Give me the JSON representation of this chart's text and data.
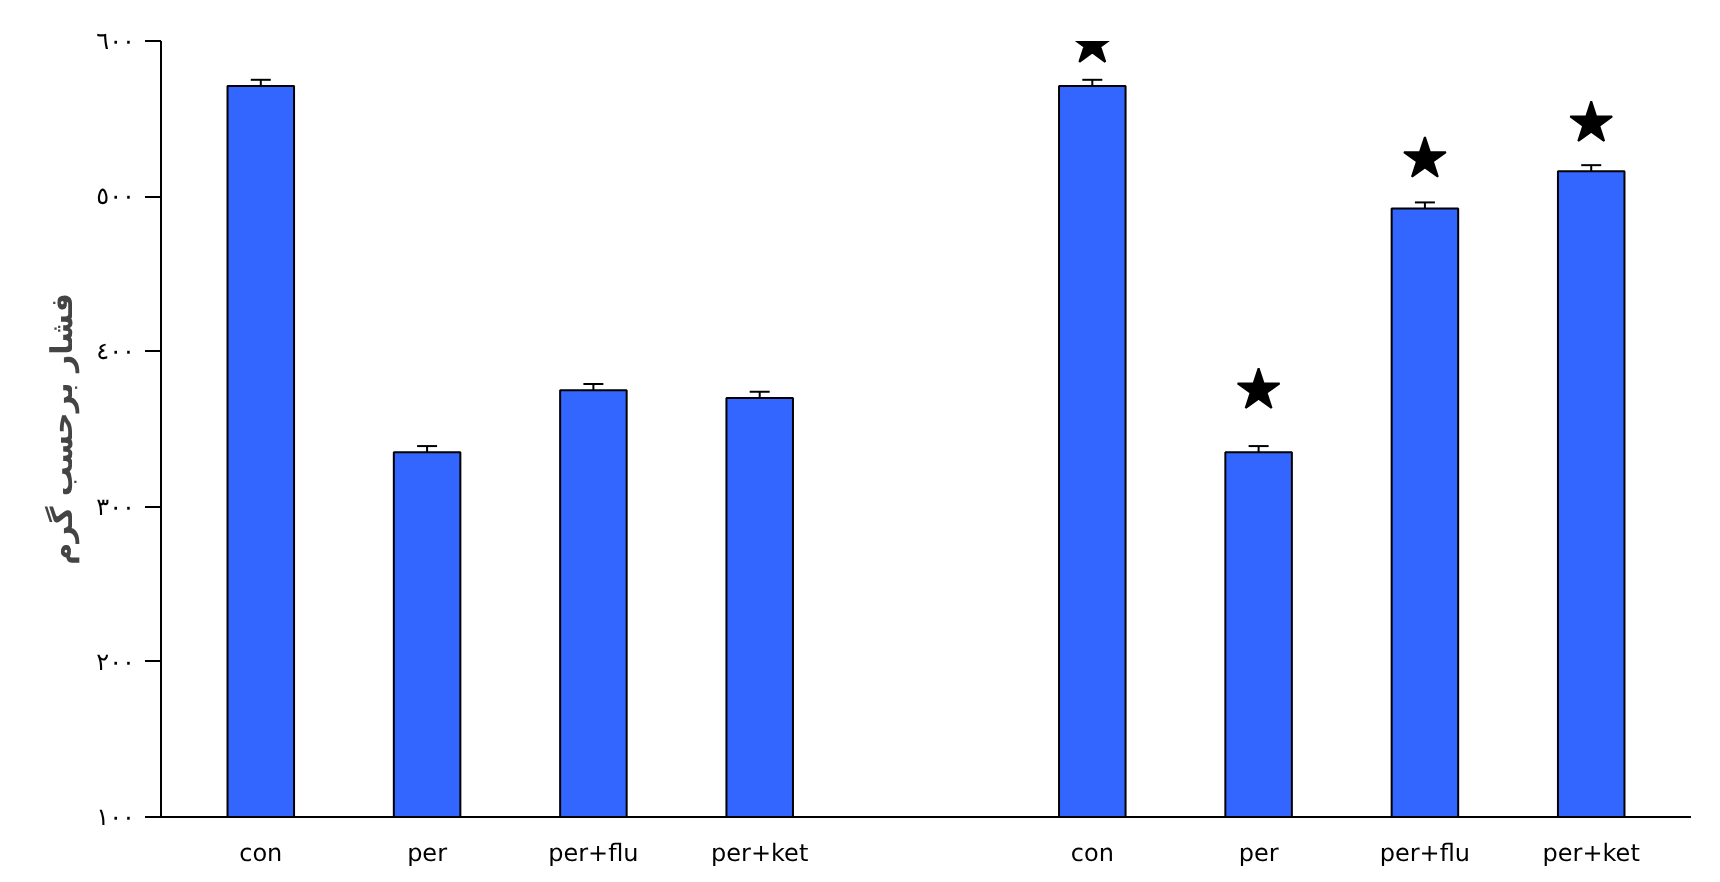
{
  "chart_data": {
    "type": "bar",
    "ylabel": "فشار برحسب گرم",
    "categories": [
      "con",
      "per",
      "per+flu",
      "per+ket",
      null,
      "con",
      "per",
      "per+flu",
      "per+ket"
    ],
    "series": [
      {
        "color": "#3366ff",
        "values": [
          571,
          335,
          375,
          370,
          null,
          571,
          335,
          492,
          516
        ],
        "errors": [
          4,
          4,
          4,
          4,
          null,
          4,
          4,
          4,
          4
        ]
      },
      {
        "type": "scatter",
        "color": "#000000",
        "marker": "star",
        "values": [
          null,
          null,
          null,
          null,
          null,
          598,
          375,
          524,
          547
        ]
      }
    ],
    "ylim": [
      100,
      600
    ],
    "yticks": [
      {
        "value": 100,
        "label": "١٠٠"
      },
      {
        "value": 200,
        "label": "٢٠٠"
      },
      {
        "value": 300,
        "label": "٣٠٠"
      },
      {
        "value": 400,
        "label": "٤٠٠"
      },
      {
        "value": 500,
        "label": "٥٠٠"
      },
      {
        "value": 600,
        "label": "٦٠٠"
      }
    ],
    "grid": false
  }
}
